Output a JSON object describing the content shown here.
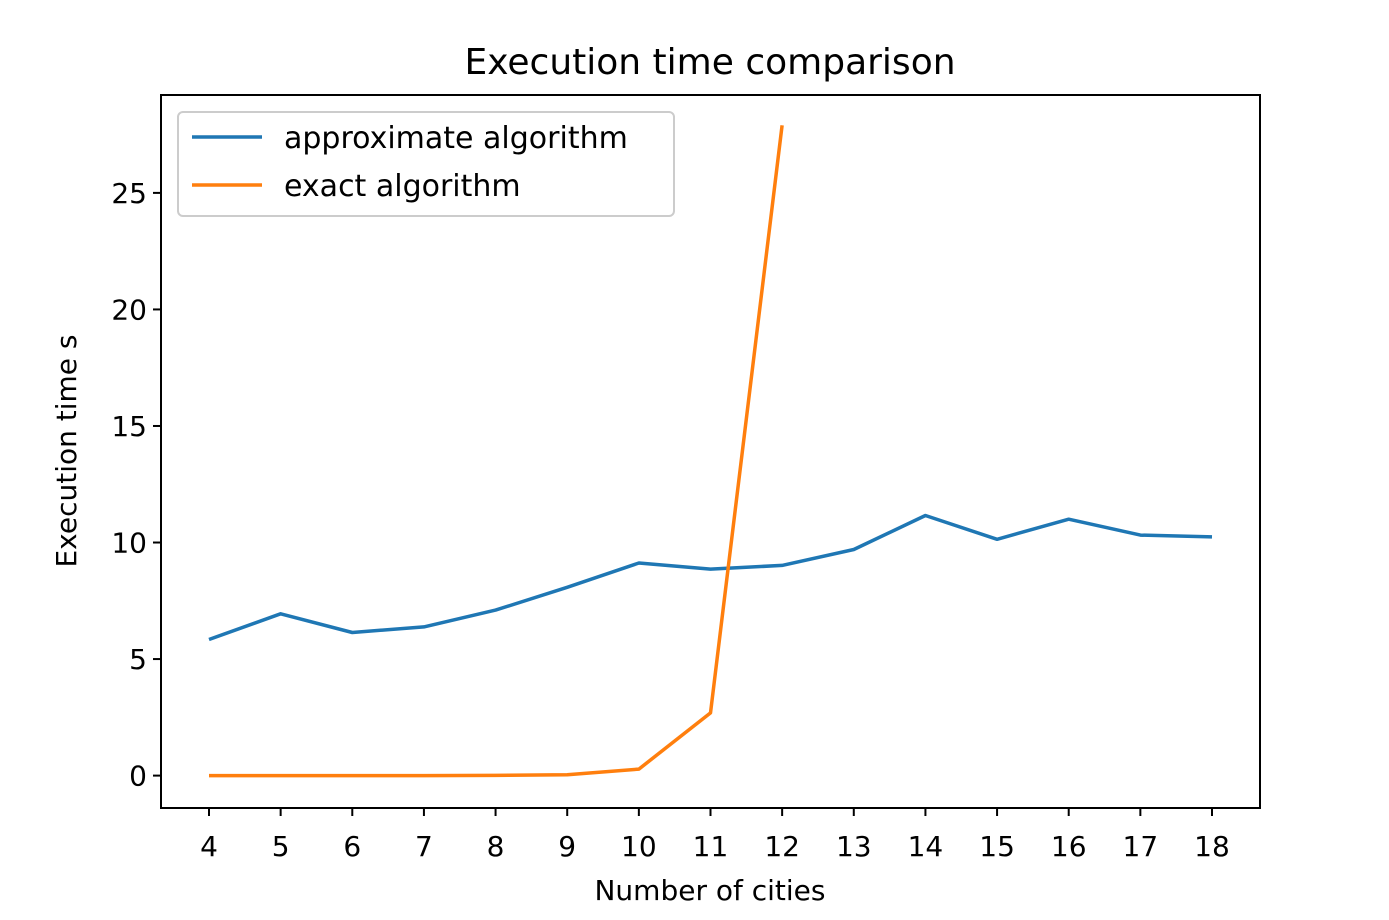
{
  "chart_data": {
    "type": "line",
    "title": "Execution time comparison",
    "xlabel": "Number of cities",
    "ylabel": "Execution time s",
    "xlim": [
      3.33,
      18.67
    ],
    "ylim": [
      -1.39,
      29.2
    ],
    "grid": false,
    "legend_position": "top-left",
    "x_ticks": [
      "4",
      "5",
      "6",
      "7",
      "8",
      "9",
      "10",
      "11",
      "12",
      "13",
      "14",
      "15",
      "16",
      "17",
      "18"
    ],
    "y_ticks": [
      "0",
      "5",
      "10",
      "15",
      "20",
      "25"
    ],
    "series": [
      {
        "name": "approximate algorithm",
        "color": "#1f77b4",
        "x": [
          4,
          5,
          6,
          7,
          8,
          9,
          10,
          11,
          12,
          13,
          14,
          15,
          16,
          17,
          18
        ],
        "y": [
          5.84,
          6.94,
          6.14,
          6.38,
          7.1,
          8.08,
          9.12,
          8.86,
          9.02,
          9.7,
          11.16,
          10.14,
          11.0,
          10.32,
          10.24
        ]
      },
      {
        "name": "exact algorithm",
        "color": "#ff7f0e",
        "x": [
          4,
          5,
          6,
          7,
          8,
          9,
          10,
          11,
          12
        ],
        "y": [
          0.0,
          0.0,
          0.0,
          0.0,
          0.01,
          0.04,
          0.28,
          2.69,
          27.9
        ]
      }
    ]
  }
}
